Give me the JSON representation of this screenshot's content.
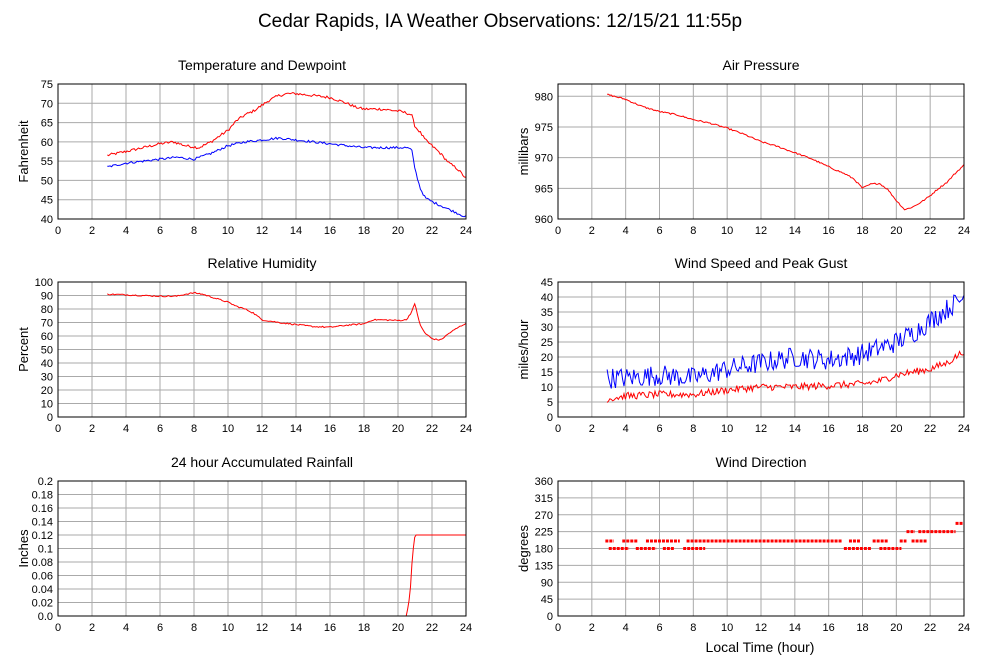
{
  "page": {
    "title": "Cedar Rapids, IA Weather Observations: 12/15/21 11:55p",
    "xlabel": "Local Time (hour)"
  },
  "colors": {
    "red": "#ff0000",
    "blue": "#0000ff",
    "grid": "#aaaaaa",
    "frame": "#000000"
  },
  "chart_data": [
    {
      "id": "temp",
      "type": "line",
      "title": "Temperature and Dewpoint",
      "ylabel": "Fahrenheit",
      "xlim": [
        0,
        24
      ],
      "ylim": [
        40,
        75
      ],
      "xticks": [
        0,
        2,
        4,
        6,
        8,
        10,
        12,
        14,
        16,
        18,
        20,
        22,
        24
      ],
      "yticks": [
        40,
        45,
        50,
        55,
        60,
        65,
        70,
        75
      ],
      "series": [
        {
          "color": "#ff0000",
          "noise": 0.35,
          "x": [
            2.9,
            4,
            5,
            6,
            6.8,
            7.5,
            8.3,
            9.0,
            9.5,
            10,
            10.5,
            11,
            11.5,
            12,
            12.5,
            13,
            13.5,
            14,
            15,
            16,
            17,
            17.5,
            18,
            19,
            20,
            20.5,
            20.8,
            21.0,
            21.3,
            21.6,
            22,
            22.5,
            23,
            23.5,
            24.0
          ],
          "y": [
            56.5,
            57.5,
            58.5,
            59.5,
            60,
            59,
            58.5,
            60,
            61.5,
            63,
            65.5,
            67,
            68,
            69.5,
            71,
            72,
            72.5,
            72.5,
            72,
            71.5,
            70,
            69,
            68.5,
            68.5,
            68,
            67.5,
            67,
            64,
            62.5,
            60.5,
            59,
            57,
            54.5,
            53,
            50.5
          ]
        },
        {
          "color": "#0000ff",
          "noise": 0.3,
          "x": [
            2.9,
            4,
            5,
            6,
            7,
            8,
            9,
            10,
            11,
            12,
            13,
            14,
            15,
            16,
            17,
            18,
            19,
            20,
            20.5,
            20.8,
            21.0,
            21.3,
            21.6,
            22,
            22.5,
            23,
            23.5,
            24.0
          ],
          "y": [
            53.5,
            54.5,
            55,
            55.5,
            56,
            55.5,
            57,
            59,
            60,
            60.5,
            61,
            60.5,
            60,
            59.5,
            59,
            58.5,
            58.5,
            58.5,
            58.5,
            58,
            53,
            48,
            45.5,
            44.5,
            43.5,
            42.5,
            41.5,
            40.5
          ]
        }
      ]
    },
    {
      "id": "pres",
      "type": "line",
      "title": "Air Pressure",
      "ylabel": "millibars",
      "xlim": [
        0,
        24
      ],
      "ylim": [
        960,
        982
      ],
      "xticks": [
        0,
        2,
        4,
        6,
        8,
        10,
        12,
        14,
        16,
        18,
        20,
        22,
        24
      ],
      "yticks": [
        960,
        965,
        970,
        975,
        980
      ],
      "series": [
        {
          "color": "#ff0000",
          "noise": 0.12,
          "x": [
            2.9,
            4,
            5,
            6,
            7,
            8,
            9,
            10,
            11,
            12,
            13,
            14,
            15,
            16,
            17,
            17.5,
            18,
            18.5,
            19,
            19.5,
            20,
            20.5,
            21,
            21.5,
            22,
            22.5,
            23,
            23.5,
            24.0
          ],
          "y": [
            980.3,
            979.5,
            978.3,
            977.5,
            977,
            976.2,
            975.6,
            974.8,
            973.8,
            972.6,
            971.8,
            970.8,
            969.8,
            968.5,
            967.3,
            966.5,
            965,
            965.7,
            965.8,
            964.8,
            963,
            961.5,
            962,
            962.8,
            963.8,
            965,
            966,
            967.5,
            968.8
          ]
        }
      ]
    },
    {
      "id": "rh",
      "type": "line",
      "title": "Relative Humidity",
      "ylabel": "Percent",
      "xlim": [
        0,
        24
      ],
      "ylim": [
        0,
        100
      ],
      "xticks": [
        0,
        2,
        4,
        6,
        8,
        10,
        12,
        14,
        16,
        18,
        20,
        22,
        24
      ],
      "yticks": [
        0,
        10,
        20,
        30,
        40,
        50,
        60,
        70,
        80,
        90,
        100
      ],
      "series": [
        {
          "color": "#ff0000",
          "noise": 0.5,
          "x": [
            2.9,
            4,
            5,
            6,
            7,
            7.5,
            8,
            8.5,
            9,
            9.5,
            10,
            10.5,
            11,
            11.5,
            12,
            13,
            14,
            15,
            16,
            17,
            18,
            18.5,
            19,
            20,
            20.5,
            20.8,
            21.0,
            21.3,
            21.6,
            22,
            22.5,
            23,
            23.5,
            24.0
          ],
          "y": [
            91,
            90.5,
            90,
            89.5,
            89.5,
            91,
            92,
            91,
            89,
            87,
            85,
            82,
            80,
            77,
            72,
            70,
            68.5,
            67,
            66.5,
            68,
            69,
            72,
            72,
            71.5,
            72,
            78,
            84,
            68,
            62,
            58,
            57,
            62,
            66,
            69.5
          ]
        }
      ]
    },
    {
      "id": "wind",
      "type": "line",
      "title": "Wind Speed and Peak Gust",
      "ylabel": "miles/hour",
      "xlim": [
        0,
        24
      ],
      "ylim": [
        0,
        45
      ],
      "xticks": [
        0,
        2,
        4,
        6,
        8,
        10,
        12,
        14,
        16,
        18,
        20,
        22,
        24
      ],
      "yticks": [
        0,
        5,
        10,
        15,
        20,
        25,
        30,
        35,
        40,
        45
      ],
      "series": [
        {
          "color": "#0000ff",
          "noise": 3.5,
          "x": [
            2.9,
            4,
            6,
            8,
            10,
            12,
            14,
            16,
            18,
            19,
            20,
            21,
            22,
            23,
            24.0
          ],
          "y": [
            13,
            13,
            14,
            13,
            16,
            18,
            20,
            19,
            21,
            23,
            25,
            28,
            32,
            36,
            40
          ]
        },
        {
          "color": "#ff0000",
          "noise": 1.2,
          "x": [
            2.9,
            4,
            6,
            8,
            10,
            12,
            14,
            16,
            18,
            19,
            20,
            21,
            22,
            23,
            24.0
          ],
          "y": [
            6,
            7,
            7.5,
            7.5,
            9,
            10,
            10,
            10.5,
            11,
            12,
            14,
            15,
            16,
            18,
            22
          ]
        }
      ]
    },
    {
      "id": "rain",
      "type": "line",
      "title": "24 hour Accumulated Rainfall",
      "ylabel": "Inches",
      "xlim": [
        0,
        24
      ],
      "ylim": [
        0,
        0.2
      ],
      "xticks": [
        0,
        2,
        4,
        6,
        8,
        10,
        12,
        14,
        16,
        18,
        20,
        22,
        24
      ],
      "yticks": [
        0,
        0.02,
        0.04,
        0.06,
        0.08,
        0.1,
        0.12,
        0.14,
        0.16,
        0.18,
        0.2
      ],
      "ytick_labels": [
        "0.0",
        "0.02",
        "0.04",
        "0.06",
        "0.08",
        "0.1",
        "0.12",
        "0.14",
        "0.16",
        "0.18",
        "0.2"
      ],
      "series": [
        {
          "color": "#ff0000",
          "noise": 0,
          "x": [
            2.9,
            20.5,
            20.7,
            20.85,
            21.0,
            24.0
          ],
          "y": [
            0,
            0,
            0.03,
            0.09,
            0.12,
            0.12
          ]
        }
      ]
    },
    {
      "id": "dir",
      "type": "scatter",
      "title": "Wind Direction",
      "ylabel": "degrees",
      "xlim": [
        0,
        24
      ],
      "ylim": [
        0,
        360
      ],
      "xticks": [
        0,
        2,
        4,
        6,
        8,
        10,
        12,
        14,
        16,
        18,
        20,
        22,
        24
      ],
      "yticks": [
        0,
        45,
        90,
        135,
        180,
        225,
        270,
        315,
        360
      ],
      "segments": [
        {
          "x0": 2.8,
          "x1": 3.3,
          "y": 200
        },
        {
          "x0": 3.0,
          "x1": 4.2,
          "y": 180
        },
        {
          "x0": 3.8,
          "x1": 4.7,
          "y": 200
        },
        {
          "x0": 4.6,
          "x1": 5.8,
          "y": 180
        },
        {
          "x0": 5.2,
          "x1": 7.2,
          "y": 200
        },
        {
          "x0": 6.2,
          "x1": 6.9,
          "y": 180
        },
        {
          "x0": 7.4,
          "x1": 8.7,
          "y": 180
        },
        {
          "x0": 7.6,
          "x1": 16.8,
          "y": 200
        },
        {
          "x0": 16.9,
          "x1": 18.5,
          "y": 180
        },
        {
          "x0": 17.2,
          "x1": 17.9,
          "y": 200
        },
        {
          "x0": 18.6,
          "x1": 19.5,
          "y": 200
        },
        {
          "x0": 19.0,
          "x1": 20.3,
          "y": 180
        },
        {
          "x0": 20.2,
          "x1": 20.6,
          "y": 200
        },
        {
          "x0": 20.6,
          "x1": 21.1,
          "y": 225
        },
        {
          "x0": 20.9,
          "x1": 21.8,
          "y": 200
        },
        {
          "x0": 21.3,
          "x1": 23.5,
          "y": 225
        },
        {
          "x0": 23.5,
          "x1": 24.0,
          "y": 247
        }
      ]
    }
  ]
}
